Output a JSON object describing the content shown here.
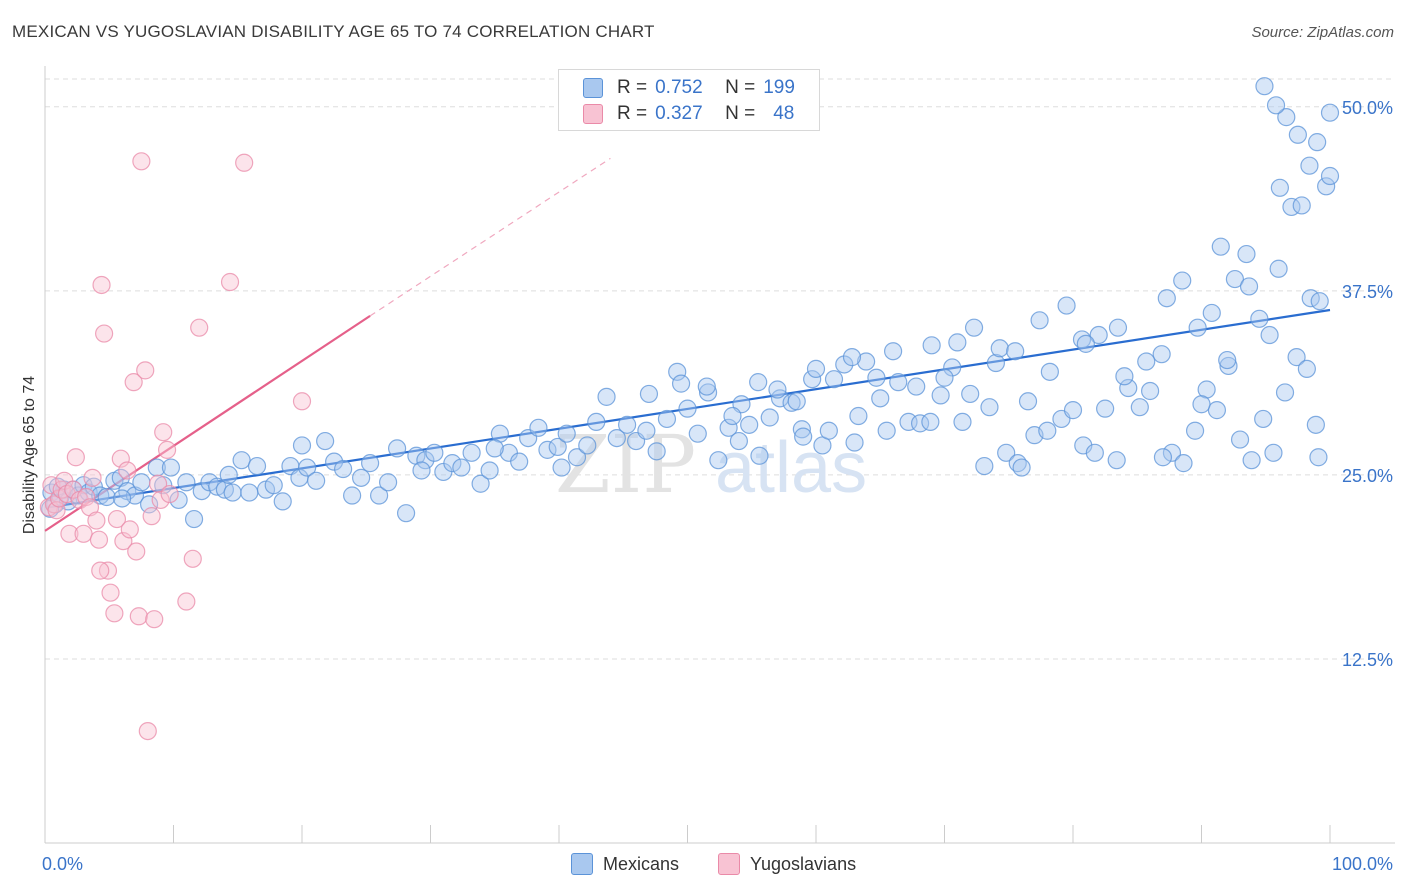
{
  "title": "MEXICAN VS YUGOSLAVIAN DISABILITY AGE 65 TO 74 CORRELATION CHART",
  "source": "Source: ZipAtlas.com",
  "watermark": {
    "zip": "ZIP",
    "atlas": "atlas"
  },
  "legend": {
    "r_label": "R =",
    "n_label": "N =",
    "mexicans": {
      "r": "0.752",
      "n": "199"
    },
    "yugoslavians": {
      "r": "0.327",
      "n": "48"
    }
  },
  "bottom_legend": {
    "mexicans": "Mexicans",
    "yugoslavians": "Yugoslavians"
  },
  "colors": {
    "mexicans_fill": "#a9c8ef",
    "mexicans_stroke": "#5b93d8",
    "mexicans_line": "#2a6dd0",
    "yugoslavians_fill": "#f8c3d3",
    "yugoslavians_stroke": "#ea8aa8",
    "yugoslavians_line": "#e5608a",
    "axis_text": "#3a74c9",
    "grid": "#dddddd"
  },
  "chart_data": {
    "type": "scatter",
    "title": "MEXICAN VS YUGOSLAVIAN DISABILITY AGE 65 TO 74 CORRELATION CHART",
    "xlabel": "",
    "ylabel": "Disability Age 65 to 74",
    "xlim": [
      0,
      100
    ],
    "ylim": [
      0,
      52.5
    ],
    "x_tick_labels": [
      "0.0%",
      "100.0%"
    ],
    "y_ticks": [
      12.5,
      25.0,
      37.5,
      50.0
    ],
    "y_tick_labels": [
      "12.5%",
      "25.0%",
      "37.5%",
      "50.0%"
    ],
    "series": [
      {
        "name": "Mexicans",
        "r": 0.752,
        "n": 199,
        "trend": {
          "x0": 0.3,
          "y0": 22.8,
          "x1": 100,
          "y1": 36.2
        },
        "points": [
          [
            0.5,
            23.8
          ],
          [
            0.8,
            23.0
          ],
          [
            1.2,
            23.5
          ],
          [
            1.5,
            24.0
          ],
          [
            1.8,
            23.2
          ],
          [
            2.2,
            24.0
          ],
          [
            2.6,
            23.6
          ],
          [
            3.0,
            24.3
          ],
          [
            3.4,
            23.8
          ],
          [
            3.8,
            24.2
          ],
          [
            4.3,
            23.6
          ],
          [
            4.8,
            23.5
          ],
          [
            5.4,
            24.6
          ],
          [
            5.9,
            24.8
          ],
          [
            6.4,
            23.9
          ],
          [
            7.0,
            23.6
          ],
          [
            7.5,
            24.5
          ],
          [
            8.1,
            23.0
          ],
          [
            8.7,
            25.5
          ],
          [
            9.2,
            24.3
          ],
          [
            9.8,
            25.5
          ],
          [
            10.4,
            23.3
          ],
          [
            11.0,
            24.5
          ],
          [
            11.6,
            22.0
          ],
          [
            12.2,
            23.9
          ],
          [
            12.8,
            24.5
          ],
          [
            13.4,
            24.2
          ],
          [
            14.0,
            24.0
          ],
          [
            14.6,
            23.8
          ],
          [
            15.3,
            26.0
          ],
          [
            15.9,
            23.8
          ],
          [
            16.5,
            25.6
          ],
          [
            17.2,
            24.0
          ],
          [
            17.8,
            24.3
          ],
          [
            18.5,
            23.2
          ],
          [
            19.1,
            25.6
          ],
          [
            19.8,
            24.8
          ],
          [
            20.4,
            25.5
          ],
          [
            21.1,
            24.6
          ],
          [
            21.8,
            27.3
          ],
          [
            22.5,
            25.9
          ],
          [
            23.2,
            25.4
          ],
          [
            23.9,
            23.6
          ],
          [
            24.6,
            24.8
          ],
          [
            25.3,
            25.8
          ],
          [
            26.0,
            23.6
          ],
          [
            26.7,
            24.5
          ],
          [
            27.4,
            26.8
          ],
          [
            28.1,
            22.4
          ],
          [
            28.9,
            26.3
          ],
          [
            29.6,
            26.0
          ],
          [
            30.3,
            26.5
          ],
          [
            31.0,
            25.2
          ],
          [
            31.7,
            25.8
          ],
          [
            32.4,
            25.5
          ],
          [
            33.2,
            26.5
          ],
          [
            33.9,
            24.4
          ],
          [
            34.6,
            25.3
          ],
          [
            35.4,
            27.8
          ],
          [
            36.1,
            26.5
          ],
          [
            36.9,
            25.9
          ],
          [
            37.6,
            27.5
          ],
          [
            38.4,
            28.2
          ],
          [
            39.1,
            26.7
          ],
          [
            39.9,
            26.9
          ],
          [
            40.6,
            27.8
          ],
          [
            41.4,
            26.2
          ],
          [
            42.2,
            27.0
          ],
          [
            42.9,
            28.6
          ],
          [
            43.7,
            30.3
          ],
          [
            44.5,
            27.5
          ],
          [
            45.3,
            28.4
          ],
          [
            46.0,
            27.3
          ],
          [
            46.8,
            28.0
          ],
          [
            47.6,
            26.6
          ],
          [
            48.4,
            28.8
          ],
          [
            49.2,
            32.0
          ],
          [
            50.0,
            29.5
          ],
          [
            50.8,
            27.8
          ],
          [
            51.6,
            30.6
          ],
          [
            52.4,
            26.0
          ],
          [
            53.2,
            28.2
          ],
          [
            54.0,
            27.3
          ],
          [
            54.8,
            28.4
          ],
          [
            55.6,
            26.3
          ],
          [
            56.4,
            28.9
          ],
          [
            57.2,
            30.2
          ],
          [
            58.1,
            29.9
          ],
          [
            58.9,
            28.1
          ],
          [
            59.7,
            31.5
          ],
          [
            60.5,
            27.0
          ],
          [
            61.4,
            31.5
          ],
          [
            62.2,
            32.5
          ],
          [
            63.0,
            27.2
          ],
          [
            63.9,
            32.7
          ],
          [
            64.7,
            31.6
          ],
          [
            65.5,
            28.0
          ],
          [
            66.4,
            31.3
          ],
          [
            67.2,
            28.6
          ],
          [
            68.1,
            28.5
          ],
          [
            68.9,
            28.6
          ],
          [
            69.7,
            30.4
          ],
          [
            70.6,
            32.3
          ],
          [
            71.4,
            28.6
          ],
          [
            72.3,
            35.0
          ],
          [
            73.1,
            25.6
          ],
          [
            74.0,
            32.6
          ],
          [
            74.8,
            26.5
          ],
          [
            75.7,
            25.8
          ],
          [
            76.5,
            30.0
          ],
          [
            77.4,
            35.5
          ],
          [
            78.2,
            32.0
          ],
          [
            79.1,
            28.8
          ],
          [
            80.0,
            29.4
          ],
          [
            80.8,
            27.0
          ],
          [
            81.7,
            26.5
          ],
          [
            82.5,
            29.5
          ],
          [
            83.4,
            26.0
          ],
          [
            84.3,
            30.9
          ],
          [
            85.2,
            29.6
          ],
          [
            86.0,
            30.7
          ],
          [
            86.9,
            33.2
          ],
          [
            87.7,
            26.5
          ],
          [
            88.6,
            25.8
          ],
          [
            89.5,
            28.0
          ],
          [
            90.4,
            30.8
          ],
          [
            91.2,
            29.4
          ],
          [
            92.1,
            32.4
          ],
          [
            93.0,
            27.4
          ],
          [
            93.9,
            26.0
          ],
          [
            94.8,
            28.8
          ],
          [
            95.6,
            26.5
          ],
          [
            96.5,
            30.6
          ],
          [
            97.4,
            33.0
          ],
          [
            98.2,
            32.2
          ],
          [
            99.1,
            26.2
          ],
          [
            0.4,
            22.7
          ],
          [
            1.0,
            24.2
          ],
          [
            6.0,
            23.4
          ],
          [
            14.3,
            25.0
          ],
          [
            20.0,
            27.0
          ],
          [
            29.3,
            25.3
          ],
          [
            35.0,
            26.8
          ],
          [
            40.2,
            25.5
          ],
          [
            47.0,
            30.5
          ],
          [
            54.2,
            29.8
          ],
          [
            58.5,
            30.0
          ],
          [
            62.8,
            33.0
          ],
          [
            66.0,
            33.4
          ],
          [
            71.0,
            34.0
          ],
          [
            74.3,
            33.6
          ],
          [
            77.0,
            27.7
          ],
          [
            79.5,
            36.5
          ],
          [
            80.7,
            34.2
          ],
          [
            82.0,
            34.5
          ],
          [
            83.5,
            35.0
          ],
          [
            85.7,
            32.7
          ],
          [
            87.3,
            37.0
          ],
          [
            88.5,
            38.2
          ],
          [
            89.7,
            35.0
          ],
          [
            90.8,
            36.0
          ],
          [
            91.5,
            40.5
          ],
          [
            92.6,
            38.3
          ],
          [
            93.7,
            37.8
          ],
          [
            94.5,
            35.6
          ],
          [
            95.3,
            34.5
          ],
          [
            96.0,
            39.0
          ],
          [
            97.0,
            43.2
          ],
          [
            97.8,
            43.3
          ],
          [
            98.5,
            37.0
          ],
          [
            99.2,
            36.8
          ],
          [
            99.7,
            44.6
          ],
          [
            100.0,
            45.3
          ],
          [
            100.0,
            49.6
          ],
          [
            99.0,
            47.6
          ],
          [
            98.4,
            46.0
          ],
          [
            97.5,
            48.1
          ],
          [
            96.6,
            49.3
          ],
          [
            95.8,
            50.1
          ],
          [
            94.9,
            51.4
          ],
          [
            96.1,
            44.5
          ],
          [
            93.5,
            40.0
          ],
          [
            92.0,
            32.8
          ],
          [
            90.0,
            29.8
          ],
          [
            87.0,
            26.2
          ],
          [
            84.0,
            31.7
          ],
          [
            81.0,
            33.9
          ],
          [
            78.0,
            28.0
          ],
          [
            76.0,
            25.5
          ],
          [
            73.5,
            29.6
          ],
          [
            70.0,
            31.6
          ],
          [
            67.8,
            31.0
          ],
          [
            65.0,
            30.2
          ],
          [
            63.3,
            29.0
          ],
          [
            61.0,
            28.0
          ],
          [
            59.0,
            27.6
          ],
          [
            57.0,
            30.8
          ],
          [
            55.5,
            31.3
          ],
          [
            53.5,
            29.0
          ],
          [
            51.5,
            31.0
          ],
          [
            49.5,
            31.2
          ],
          [
            60.0,
            32.2
          ],
          [
            69.0,
            33.8
          ],
          [
            72.0,
            30.5
          ],
          [
            75.5,
            33.4
          ],
          [
            98.9,
            28.4
          ]
        ]
      },
      {
        "name": "Yugoslavians",
        "r": 0.327,
        "n": 48,
        "trend": {
          "x0": 0.0,
          "y0": 21.2,
          "x1": 25.3,
          "y1": 35.8
        },
        "trend_extension": {
          "x0": 25.3,
          "y0": 35.8,
          "x1": 44.0,
          "y1": 46.5
        },
        "points": [
          [
            0.3,
            22.8
          ],
          [
            0.5,
            24.3
          ],
          [
            0.7,
            23.0
          ],
          [
            0.9,
            22.6
          ],
          [
            1.1,
            23.4
          ],
          [
            1.3,
            24.0
          ],
          [
            1.5,
            24.6
          ],
          [
            1.7,
            23.7
          ],
          [
            1.9,
            21.0
          ],
          [
            2.2,
            24.0
          ],
          [
            2.4,
            26.2
          ],
          [
            2.7,
            23.3
          ],
          [
            3.0,
            21.0
          ],
          [
            3.2,
            23.5
          ],
          [
            3.5,
            22.8
          ],
          [
            3.7,
            24.8
          ],
          [
            4.0,
            21.9
          ],
          [
            4.2,
            20.6
          ],
          [
            4.4,
            37.9
          ],
          [
            4.6,
            34.6
          ],
          [
            4.9,
            18.5
          ],
          [
            5.1,
            17.0
          ],
          [
            5.4,
            15.6
          ],
          [
            5.6,
            22.0
          ],
          [
            5.9,
            26.1
          ],
          [
            6.1,
            20.5
          ],
          [
            6.4,
            25.3
          ],
          [
            6.6,
            21.3
          ],
          [
            6.9,
            31.3
          ],
          [
            7.1,
            19.8
          ],
          [
            7.3,
            15.4
          ],
          [
            7.5,
            46.3
          ],
          [
            7.8,
            32.1
          ],
          [
            8.0,
            7.6
          ],
          [
            8.3,
            22.2
          ],
          [
            8.5,
            15.2
          ],
          [
            8.8,
            24.4
          ],
          [
            9.0,
            23.3
          ],
          [
            9.2,
            27.9
          ],
          [
            9.5,
            26.7
          ],
          [
            9.7,
            23.7
          ],
          [
            11.0,
            16.4
          ],
          [
            11.5,
            19.3
          ],
          [
            14.4,
            38.1
          ],
          [
            15.5,
            46.2
          ],
          [
            12.0,
            35.0
          ],
          [
            20.0,
            30.0
          ],
          [
            4.3,
            18.5
          ]
        ]
      }
    ]
  }
}
